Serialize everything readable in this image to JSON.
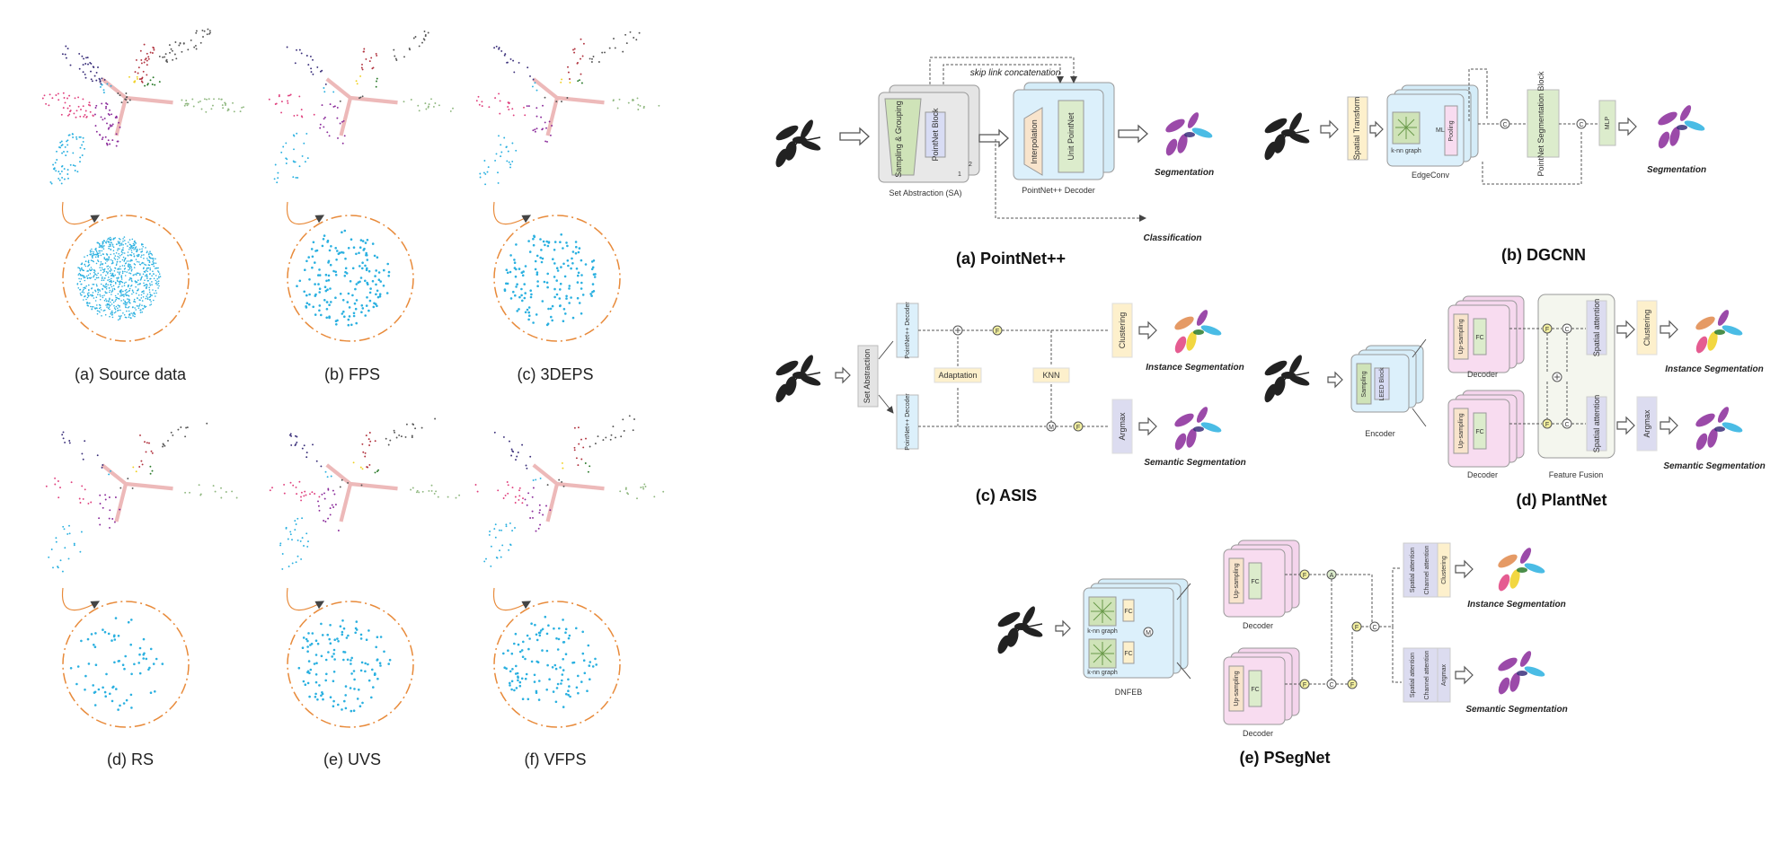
{
  "left_panel": {
    "captions": [
      "(a) Source data",
      "(b) FPS",
      "(c) 3DEPS",
      "(d) RS",
      "(e) UVS",
      "(f) VFPS"
    ]
  },
  "pointnetpp": {
    "title": "(a) PointNet++",
    "skip_label": "skip link concatenation",
    "sampling": "Sampling & Grouping",
    "pnblock": "PointNet Block",
    "sa_label": "Set Abstraction (SA)",
    "interp": "Interpolation",
    "unitpn": "Unit PointNet",
    "decoder_label": "PointNet++ Decoder",
    "segmentation": "Segmentation",
    "classification": "Classification",
    "stack_nums": [
      "1",
      "2"
    ]
  },
  "dgcnn": {
    "title": "(b) DGCNN",
    "spatial": "Spatial Transform",
    "knn": "k-nn graph",
    "mlp": "MLP",
    "pooling": "Pooling",
    "edgeconv": "EdgeConv",
    "segblock": "PointNet Segmentation Block",
    "mlp2": "MLP",
    "segmentation": "Segmentation",
    "ops": [
      "C",
      "C"
    ]
  },
  "asis": {
    "title": "(c) ASIS",
    "setabs": "Set Abstraction",
    "dec1": "PointNet++ Decoder",
    "dec2": "PointNet++ Decoder",
    "adaptation": "Adaptation",
    "knn": "KNN",
    "clustering": "Clustering",
    "argmax": "Argmax",
    "instance": "Instance Segmentation",
    "semantic": "Semantic Segmentation",
    "ops": [
      "F",
      "M",
      "F"
    ]
  },
  "plantnet": {
    "title": "(d) PlantNet",
    "encoder": "Encoder",
    "sampling": "Sampling",
    "leed": "LEED Block",
    "decoder": "Decoder",
    "upsampling": "Up-sampling",
    "fc": "FC",
    "spatial1": "Spatial attention",
    "spatial2": "Spatial attention",
    "fusion": "Feature Fusion",
    "clustering": "Clustering",
    "argmax": "Argmax",
    "instance": "Instance Segmentation",
    "semantic": "Semantic Segmentation",
    "ops": [
      "F",
      "C",
      "F",
      "C"
    ]
  },
  "psegnet": {
    "title": "(e) PSegNet",
    "dnfeb": "DNFEB",
    "knn": "k-nn graph",
    "fc": "FC",
    "decoder": "Decoder",
    "upsampling": "Up-sampling",
    "spatial": "Spatial attention",
    "channel": "Channel attention",
    "clustering": "Clustering",
    "argmax": "Argmax",
    "instance": "Instance Segmentation",
    "semantic": "Semantic Segmentation",
    "ops": [
      "F",
      "A",
      "F",
      "C",
      "F",
      "F",
      "C",
      "F",
      "M"
    ]
  },
  "colors": {
    "leaf_navy": "#3a2f7a",
    "leaf_red": "#b0303c",
    "leaf_gray": "#555555",
    "leaf_yellow": "#f0d020",
    "leaf_green": "#2a7a2a",
    "leaf_pink": "#e0407e",
    "leaf_purple": "#8a2a9a",
    "leaf_cyan": "#2ab0e0",
    "leaf_sage": "#90b880",
    "stem": "#e8a8a8",
    "orange": "#e88a3a",
    "gray_box": "#e6e6e6",
    "blue_box": "#dcecf8",
    "green_box": "#dceccc",
    "pink_box": "#f8dcf0",
    "yellow_box": "#fdf0cc",
    "lavender_box": "#dcdcf0",
    "peach_box": "#f8e4cc"
  }
}
